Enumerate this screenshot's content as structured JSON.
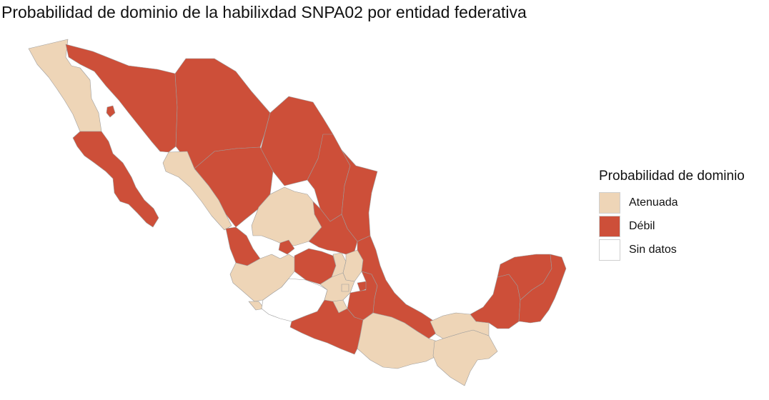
{
  "title": "Probabilidad de dominio de la habilixdad SNPA02 por entidad federativa",
  "legend": {
    "title": "Probabilidad de dominio",
    "items": [
      {
        "key": "atenuada",
        "label": "Atenuada",
        "color": "#EED5B7"
      },
      {
        "key": "debil",
        "label": "Débil",
        "color": "#CD4F39"
      },
      {
        "key": "sin_datos",
        "label": "Sin datos",
        "color": "#FFFFFF"
      }
    ]
  },
  "states": [
    {
      "name": "Baja California",
      "category": "atenuada"
    },
    {
      "name": "Baja California Sur",
      "category": "debil"
    },
    {
      "name": "Sonora",
      "category": "debil"
    },
    {
      "name": "Chihuahua",
      "category": "debil"
    },
    {
      "name": "Coahuila",
      "category": "debil"
    },
    {
      "name": "Nuevo León",
      "category": "debil"
    },
    {
      "name": "Tamaulipas",
      "category": "debil"
    },
    {
      "name": "Sinaloa",
      "category": "atenuada"
    },
    {
      "name": "Durango",
      "category": "debil"
    },
    {
      "name": "Nayarit",
      "category": "debil"
    },
    {
      "name": "Zacatecas",
      "category": "atenuada"
    },
    {
      "name": "Aguascalientes",
      "category": "debil"
    },
    {
      "name": "San Luis Potosí",
      "category": "debil"
    },
    {
      "name": "Jalisco",
      "category": "atenuada"
    },
    {
      "name": "Colima",
      "category": "atenuada"
    },
    {
      "name": "Michoacán",
      "category": "sin_datos"
    },
    {
      "name": "Guanajuato",
      "category": "debil"
    },
    {
      "name": "Querétaro",
      "category": "atenuada"
    },
    {
      "name": "Hidalgo",
      "category": "atenuada"
    },
    {
      "name": "Estado de México",
      "category": "atenuada"
    },
    {
      "name": "Ciudad de México",
      "category": "atenuada"
    },
    {
      "name": "Morelos",
      "category": "atenuada"
    },
    {
      "name": "Tlaxcala",
      "category": "debil"
    },
    {
      "name": "Puebla",
      "category": "debil"
    },
    {
      "name": "Veracruz",
      "category": "debil"
    },
    {
      "name": "Guerrero",
      "category": "debil"
    },
    {
      "name": "Oaxaca",
      "category": "atenuada"
    },
    {
      "name": "Chiapas",
      "category": "atenuada"
    },
    {
      "name": "Tabasco",
      "category": "atenuada"
    },
    {
      "name": "Campeche",
      "category": "debil"
    },
    {
      "name": "Yucatán",
      "category": "debil"
    },
    {
      "name": "Quintana Roo",
      "category": "debil"
    }
  ]
}
